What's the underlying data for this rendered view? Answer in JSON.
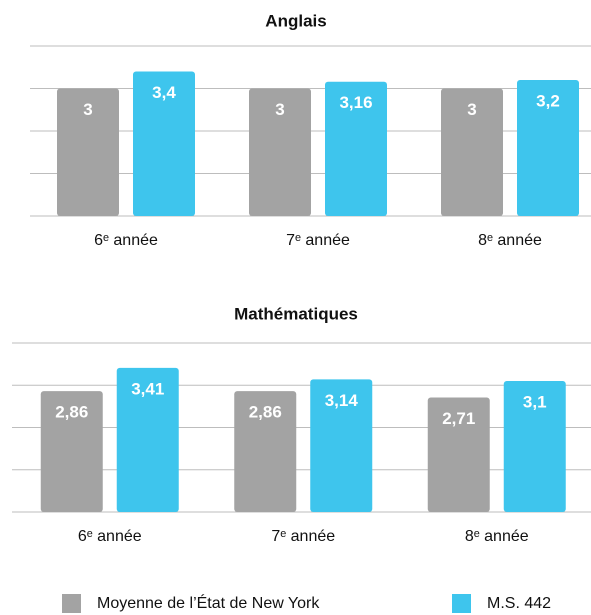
{
  "chart_data": [
    {
      "type": "bar",
      "title": "Anglais",
      "categories": [
        "6ᵉ année",
        "7ᵉ année",
        "8ᵉ année"
      ],
      "series": [
        {
          "values": [
            3,
            3,
            3
          ],
          "value_labels": [
            "3",
            "3",
            "3"
          ]
        },
        {
          "values": [
            3.4,
            3.16,
            3.2
          ],
          "value_labels": [
            "3,4",
            "3,16",
            "3,2"
          ]
        }
      ],
      "ylim": [
        0,
        4
      ],
      "yticks": [
        0,
        1,
        2,
        3,
        4
      ],
      "grid": true
    },
    {
      "type": "bar",
      "title": "Mathématiques",
      "categories": [
        "6ᵉ année",
        "7ᵉ année",
        "8ᵉ année"
      ],
      "series": [
        {
          "values": [
            2.86,
            2.86,
            2.71
          ],
          "value_labels": [
            "2,86",
            "2,86",
            "2,71"
          ]
        },
        {
          "values": [
            3.41,
            3.14,
            3.1
          ],
          "value_labels": [
            "3,41",
            "3,14",
            "3,1"
          ]
        }
      ],
      "ylim": [
        0,
        4
      ],
      "yticks": [
        0,
        1,
        2,
        3,
        4
      ],
      "grid": true
    }
  ],
  "legend": [
    {
      "name": "Moyenne de l’État de New York",
      "color": "#a3a3a3"
    },
    {
      "name": "M.S. 442",
      "color": "#3ec5ed"
    }
  ]
}
